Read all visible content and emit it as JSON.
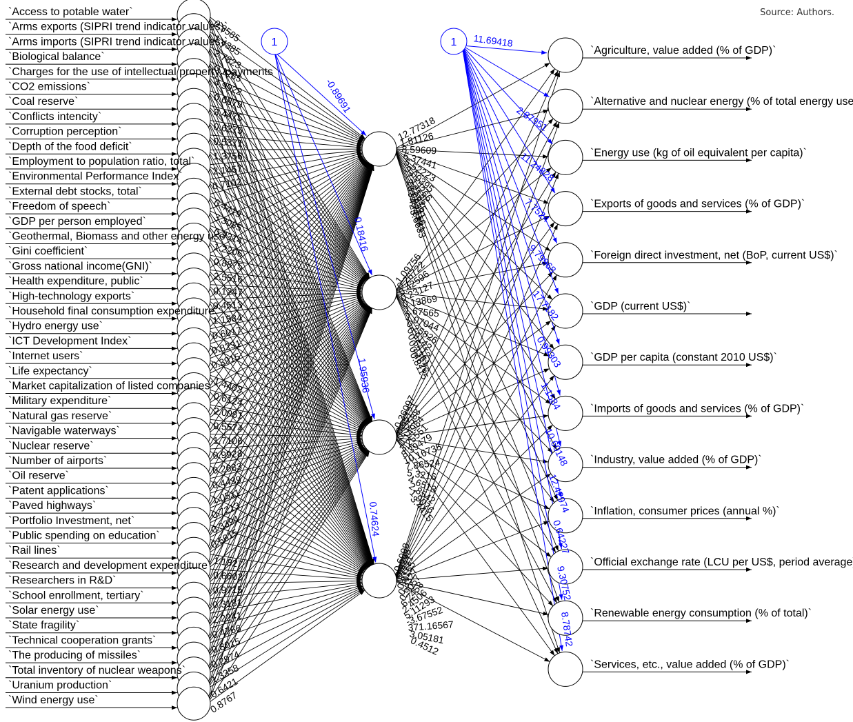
{
  "source_note": "Source: Authors.",
  "colors": {
    "main": "#000000",
    "bias": "#0000ff",
    "background": "#ffffff"
  },
  "inputs": [
    "`Access to potable water`",
    "`Arms exports (SIPRI trend indicator values)`",
    "`Arms imports (SIPRI trend indicator values)`",
    "`Biological balance`",
    "`Charges for the use of intellectual property, payments`",
    "`CO2 emissions`",
    "`Coal reserve`",
    "`Conflicts intencity`",
    "`Corruption perception`",
    "`Depth of the food deficit`",
    "`Employment to population ratio, total`",
    "`Environmental Performance Index`",
    "`External debt stocks, total`",
    "`Freedom of speech`",
    "`GDP per person employed`",
    "`Geothermal, Biomass and other energy use`",
    "`Gini coefficient`",
    "`Gross national income(GNI)`",
    "`Health expenditure, public`",
    "`High-technology exports`",
    "`Household final consumption expenditure`",
    "`Hydro energy use`",
    "`ICT Development Index`",
    "`Internet users`",
    "`Life expectancy`",
    "`Market capitalization of listed companies`",
    "`Military expenditure`",
    "`Natural gas reserve`",
    "`Navigable waterways`",
    "`Nuclear reserve`",
    "`Number of airports`",
    "`Oil reserve`",
    "`Patent applications`",
    "`Paved highways`",
    "`Portfolio Investment, net`",
    "`Public spending on education`",
    "`Rail lines`",
    "`Research and development expenditure`",
    "`Researchers in R&D`",
    "`School enrollment, tertiary`",
    "`Solar energy use`",
    "`State fragility`",
    "`Technical cooperation grants`",
    "`The producing of missiles`",
    "`Total inventory of nuclear weapons`",
    "`Uranium production`",
    "`Wind energy use`"
  ],
  "outputs": [
    "`Agriculture, value added (% of GDP)`",
    "`Alternative and nuclear energy (% of total energy use)`",
    "`Energy use (kg of oil equivalent per capita)`",
    "`Exports of goods and services (% of GDP)`",
    "`Foreign direct investment, net (BoP, current US$)`",
    "`GDP (current US$)`",
    "`GDP per capita (constant 2010 US$)`",
    "`Imports of goods and services (% of GDP)`",
    "`Industry, value added (% of GDP)`",
    "`Inflation, consumer prices (annual %)`",
    "`Official exchange rate (LCU per US$, period average)`",
    "`Renewable energy consumption (% of total)`",
    "`Services, etc., value added (% of GDP)`"
  ],
  "bias_label": "1",
  "hidden_bias_weights": [
    "-0.89691",
    "0.18416",
    "1.95936",
    "0.74624"
  ],
  "output_bias_weights": [
    "11.69418",
    "2.87951",
    "11.24828",
    "7.7524",
    "9.79968",
    "17.7182",
    "0.99303",
    "1.1584",
    "10.60148",
    "12.42974",
    "0.64227",
    "9.30752",
    "8.78742"
  ],
  "hidden_output_weights": [
    [
      "12.77318",
      "1.81126",
      "8.59609",
      "6.37441",
      "5.52223",
      "9.00395",
      "7.13266",
      "2.2185",
      "6.0215",
      "3.9321",
      "4.7716",
      "2.8831",
      "5.6633"
    ],
    [
      "1.09756",
      "0.26722",
      "0.42596",
      "0.23127",
      "0.13869",
      "1.67565",
      "1.07044",
      "0.25826",
      "0.9142",
      "0.5412",
      "0.3361",
      "0.4626",
      "0.8115"
    ],
    [
      "0.36097",
      "0.65121",
      "0.32588",
      "0.14984",
      "3.25551",
      "8.39479",
      "10.16735",
      "7.86524",
      "5.3216",
      "4.6513",
      "2.8542",
      "1.9076",
      "3.4415"
    ],
    [
      "0.6008",
      "0.2398",
      "0.7721",
      "0.8155",
      "0.3327",
      "0.9057",
      "6.2458",
      "2.4506",
      "5.11293",
      "-3.67552",
      "371.16567",
      "3.05181",
      "0.4512"
    ]
  ],
  "input_weight_samples": [
    "0.3585",
    "1.4385",
    "2.7823",
    "0.1285",
    "4.9922",
    "0.6879",
    "3.4475",
    "0.6275",
    "0.5371",
    "1.3756",
    "2.1457",
    "0.7102",
    "0.4419",
    "3.3085",
    "0.9314",
    "1.2206",
    "0.8875",
    "2.5516",
    "0.1247",
    "0.4513",
    "1.1584",
    "0.6017",
    "0.8231",
    "0.3915",
    "1.4402",
    "0.6124",
    "2.0081",
    "0.5574",
    "1.7106",
    "0.9928",
    "0.2683",
    "0.4439",
    "1.0511",
    "0.7213",
    "0.3394",
    "0.5615",
    "1.1827",
    "0.6602",
    "0.9715",
    "0.3181",
    "2.2241",
    "0.4766",
    "0.8015",
    "0.2974",
    "1.3358",
    "0.6421",
    "0.8767"
  ]
}
